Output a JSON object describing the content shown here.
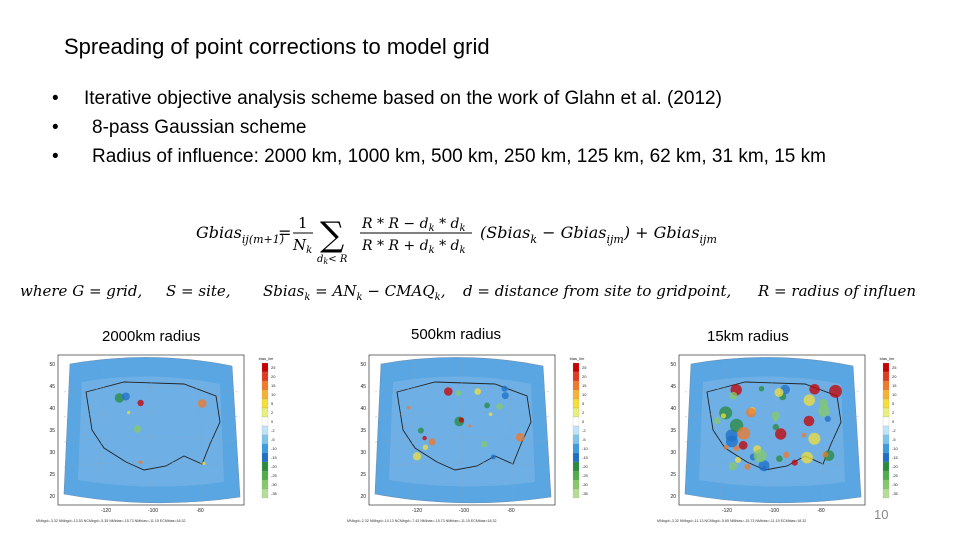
{
  "title": "Spreading of point corrections to model grid",
  "bullets": [
    {
      "marker": "•",
      "text": "Iterative objective analysis scheme based on the work of Glahn et al. (2012)"
    },
    {
      "marker": "•",
      "text": "8-pass Gaussian scheme"
    },
    {
      "marker": "•",
      "text": "Radius of influence: 2000 km, 1000 km, 500 km, 250 km, 125 km, 62 km, 31 km, 15 km"
    }
  ],
  "formula": {
    "lhs": "Gbias",
    "lhs_sub": "ij(m+1)",
    "equals": "=",
    "frac_num": "1",
    "frac_den": "N",
    "frac_den_sub": "k",
    "sum_sub": "d",
    "sum_sub_k": "k",
    "sum_sub_rest": "< R",
    "numerator": "R * R − d",
    "denominator": "R * R + d",
    "times_d": " * d",
    "k": "k",
    "paren_left": "(Sbias",
    "minus_g": " − Gbias",
    "ijm": "ijm",
    "plus_g": ") + Gbias"
  },
  "where_terms": [
    "where G = grid,",
    "S = site,",
    "Sbias",
    "= AN",
    "− CMAQ",
    ",",
    "d = distance from site to gridpoint,",
    "R = radius of influence"
  ],
  "where_subs": {
    "k": "k"
  },
  "maps": [
    {
      "caption": "2000km radius",
      "stats": "MNbgd=-3.32  NMbgd=-13.53  NCMbgd=-5.35  NMbias=-15.73  NMbias=-11.15  ECMbias=18.32"
    },
    {
      "caption": "500km radius",
      "stats": "MNbgd=-2.32  NMbgd=-10.13  NCMbgd=-7.43  NMbias=-15.73  NMbias=-11.15  ECMbias=18.32"
    },
    {
      "caption": "15km radius",
      "stats": "MNbgd=-3.32  NMbgd=-11.13  NCMbgd=-5.65  NMbias=-15.73  NMbias=-11.15  ECMbias=18.32"
    }
  ],
  "axis": {
    "lon_ticks": [
      "-120",
      "-100",
      "-80"
    ],
    "lat_ticks": [
      "50",
      "45",
      "40",
      "35",
      "30",
      "25",
      "20"
    ],
    "colorbar_title": "bias_lim",
    "colorbar_ticks": [
      "25",
      "20",
      "15",
      "10",
      "5",
      "2",
      "0",
      "-2",
      "-5",
      "-10",
      "-15",
      "-20",
      "-25",
      "-30",
      "-35"
    ]
  },
  "colors": {
    "map_background": "#7fb8e8",
    "domain_blue": "#5aa6e2",
    "coast": "#222222"
  },
  "page_number": "10"
}
